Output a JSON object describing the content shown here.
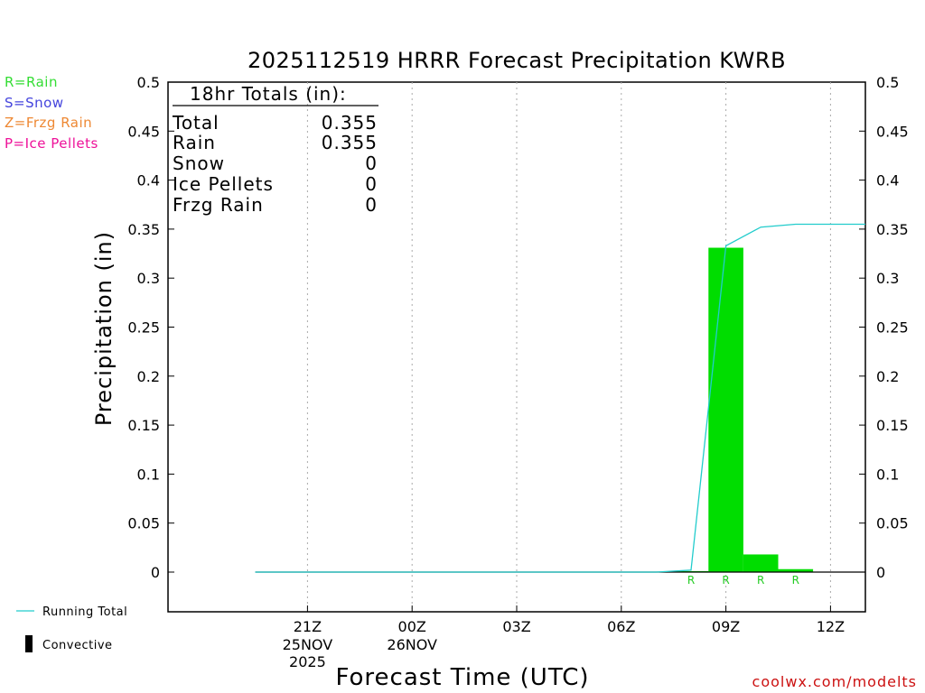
{
  "chart_data": {
    "type": "bar",
    "title": "2025112519 HRRR Forecast Precipitation KWRB",
    "xlabel": "Forecast Time (UTC)",
    "ylabel": "Precipitation (in)",
    "ylim": [
      -0.04,
      0.5
    ],
    "y_ticks": [
      "0",
      "0.05",
      "0.1",
      "0.15",
      "0.2",
      "0.25",
      "0.3",
      "0.35",
      "0.4",
      "0.45",
      "0.5"
    ],
    "y_tick_values": [
      0,
      0.05,
      0.1,
      0.15,
      0.2,
      0.25,
      0.3,
      0.35,
      0.4,
      0.45,
      0.5
    ],
    "x_range_hours": [
      -2.0,
      18.0
    ],
    "x_ticks": [
      {
        "hour": 2,
        "label": "21Z",
        "sub1": "25NOV",
        "sub2": "2025"
      },
      {
        "hour": 5,
        "label": "00Z",
        "sub1": "26NOV",
        "sub2": ""
      },
      {
        "hour": 8,
        "label": "03Z",
        "sub1": "",
        "sub2": ""
      },
      {
        "hour": 11,
        "label": "06Z",
        "sub1": "",
        "sub2": ""
      },
      {
        "hour": 14,
        "label": "09Z",
        "sub1": "",
        "sub2": ""
      },
      {
        "hour": 17,
        "label": "12Z",
        "sub1": "",
        "sub2": ""
      }
    ],
    "grid": "vertical-dotted",
    "bars": [
      {
        "hour": 13,
        "value": 0.001,
        "type": "R"
      },
      {
        "hour": 14,
        "value": 0.331,
        "type": "R"
      },
      {
        "hour": 15,
        "value": 0.018,
        "type": "R"
      },
      {
        "hour": 16,
        "value": 0.003,
        "type": "R"
      }
    ],
    "running_total": {
      "name": "Running Total",
      "hours": [
        0.5,
        12.0,
        13.0,
        14.0,
        15.0,
        16.0,
        17.0,
        18.0
      ],
      "values": [
        0,
        0,
        0.002,
        0.333,
        0.352,
        0.355,
        0.355,
        0.355
      ]
    },
    "totals": {
      "header": "18hr Totals (in):",
      "rows": [
        {
          "label": "Total",
          "value": "0.355"
        },
        {
          "label": "Rain",
          "value": "0.355"
        },
        {
          "label": "Snow",
          "value": "0"
        },
        {
          "label": "Ice Pellets",
          "value": "0"
        },
        {
          "label": "Frzg Rain",
          "value": "0"
        }
      ]
    },
    "type_key": [
      {
        "text": "R=Rain",
        "color": "#33dd33"
      },
      {
        "text": "S=Snow",
        "color": "#4444dd"
      },
      {
        "text": "Z=Frzg Rain",
        "color": "#ee8833"
      },
      {
        "text": "P=Ice Pellets",
        "color": "#ee1199"
      }
    ],
    "legend": {
      "running_total_label": "Running Total",
      "convective_label": "Convective"
    },
    "colors": {
      "bar": "#00dd00",
      "running_total": "#22cccc",
      "ptype_label": "#22cc22",
      "credit": "#cc1111"
    }
  },
  "credit": "coolwx.com/modelts"
}
